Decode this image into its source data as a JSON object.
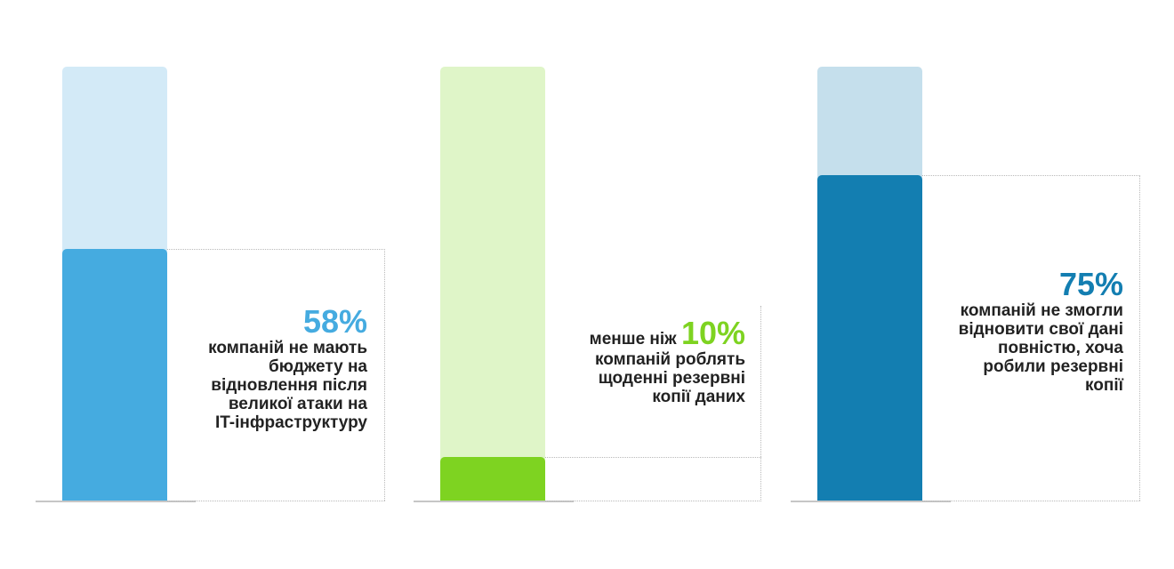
{
  "chart_data": [
    {
      "type": "bar",
      "values": [
        58
      ],
      "ylim": [
        0,
        100
      ],
      "colors": {
        "fill": "#45abe0",
        "track": "#d3eaf7"
      },
      "value_label": "58%",
      "caption_lines": [
        "компаній не мають",
        "бюджету на",
        "відновлення після",
        "великої атаки на",
        "IT-інфраструктуру"
      ]
    },
    {
      "type": "bar",
      "values": [
        10
      ],
      "ylim": [
        0,
        100
      ],
      "colors": {
        "fill": "#7ed321",
        "track": "#dff5c8"
      },
      "prefix": "менше ніж",
      "value_label": "10%",
      "caption_lines": [
        "компаній роблять",
        "щоденні резервні",
        "копії даних"
      ]
    },
    {
      "type": "bar",
      "values": [
        75
      ],
      "ylim": [
        0,
        100
      ],
      "colors": {
        "fill": "#137eb1",
        "track": "#c5dfec"
      },
      "value_label": "75%",
      "caption_lines": [
        "компаній не змогли",
        "відновити свої дані",
        "повністю, хоча",
        "робили резервні",
        "копії"
      ]
    }
  ]
}
